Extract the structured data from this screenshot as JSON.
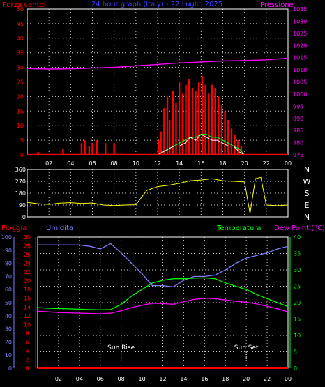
{
  "title": "24 hour graph (Italy) - 22 Luglio 2025",
  "x_ticks": [
    "02",
    "04",
    "06",
    "08",
    "10",
    "12",
    "14",
    "16",
    "18",
    "20",
    "22",
    "00"
  ],
  "colors": {
    "wind": "#ff0000",
    "gust": "#ff0000",
    "wind_mean": "#ffffff",
    "wind_green": "#00ff00",
    "pressure": "#ff00ff",
    "direction": "#ffff00",
    "humidity": "#7f7fff",
    "temperature": "#00ff00",
    "dewpoint": "#ff00ff",
    "rain": "#ff0000",
    "axis_left_top": "#ff0000",
    "axis_right_top": "#ff00ff",
    "axis_humidity": "#7f7fff",
    "axis_rain": "#ff0000",
    "axis_temp": "#00ff00",
    "grid": "#ffffff",
    "frame": "#ffffff"
  },
  "chart_data": [
    {
      "type": "line",
      "title": "24 hour graph (Italy) - 22 Luglio 2025",
      "ylabel_left": "Forza vento(",
      "ylabel_right": "Pressione",
      "y_left_ticks": [
        0,
        5,
        10,
        15,
        20,
        25,
        30,
        35,
        40,
        45,
        50
      ],
      "y_left_range": [
        0,
        50
      ],
      "y_right_ticks": [
        975,
        980,
        985,
        990,
        995,
        1000,
        1005,
        1010,
        1015,
        1020,
        1025,
        1030,
        1035
      ],
      "y_right_range": [
        975,
        1035
      ],
      "x_range_hours": [
        0,
        24
      ],
      "series": [
        {
          "name": "Pressione",
          "axis": "right",
          "x": [
            0,
            2,
            4,
            6,
            8,
            10,
            12,
            14,
            16,
            18,
            20,
            22,
            24
          ],
          "values": [
            1010.5,
            1010.3,
            1010.4,
            1010.7,
            1011.0,
            1011.6,
            1012.2,
            1012.8,
            1013.2,
            1013.6,
            1013.8,
            1014.1,
            1014.8
          ]
        },
        {
          "name": "Wind gust",
          "axis": "left",
          "kind": "bars",
          "x": [
            1.0,
            3.3,
            5.0,
            5.3,
            5.7,
            6.0,
            6.4,
            7.2,
            8.0,
            12.1,
            12.3,
            12.6,
            12.9,
            13.1,
            13.4,
            13.7,
            14.0,
            14.3,
            14.6,
            14.9,
            15.2,
            15.5,
            15.8,
            16.1,
            16.4,
            16.7,
            17.0,
            17.3,
            17.6,
            17.9,
            18.2,
            18.5,
            18.8,
            19.1,
            19.4,
            19.7
          ],
          "values": [
            1,
            2,
            4,
            5,
            3,
            4,
            5,
            4,
            4,
            5,
            8,
            16,
            20,
            12,
            22,
            18,
            25,
            21,
            24,
            26,
            23,
            22,
            25,
            27,
            24,
            21,
            24,
            23,
            20,
            17,
            15,
            12,
            9,
            7,
            5,
            3
          ]
        },
        {
          "name": "Wind mean",
          "axis": "left",
          "x": [
            12.0,
            12.5,
            13.0,
            13.5,
            14.0,
            14.5,
            15.0,
            15.5,
            16.0,
            16.5,
            17.0,
            17.5,
            18.0,
            18.5,
            19.0,
            19.5,
            20.0
          ],
          "values": [
            0,
            1,
            2,
            3,
            3,
            4,
            6,
            5,
            7,
            6,
            5,
            5,
            4,
            3,
            3,
            1,
            0
          ]
        },
        {
          "name": "Wind avg",
          "axis": "left",
          "x": [
            12.0,
            12.5,
            13.0,
            13.5,
            14.0,
            14.5,
            15.0,
            15.5,
            16.0,
            16.5,
            17.0,
            17.5,
            18.0,
            18.5,
            19.0,
            19.5,
            20.0
          ],
          "values": [
            0,
            1,
            2,
            3,
            4,
            5,
            6,
            6,
            7,
            7,
            6,
            6,
            5,
            4,
            3,
            2,
            0
          ]
        }
      ]
    },
    {
      "type": "line",
      "y_ticks": [
        0,
        90,
        180,
        270,
        360
      ],
      "y_range": [
        0,
        360
      ],
      "right_labels": [
        "N",
        "W",
        "S",
        "E",
        "N"
      ],
      "series": [
        {
          "name": "Wind direction",
          "x": [
            0,
            1,
            2,
            3,
            4,
            5,
            6,
            7,
            8,
            9,
            10,
            11,
            12,
            13,
            14,
            15,
            16,
            17,
            18,
            19,
            20,
            20.5,
            21,
            21.5,
            22,
            23,
            24
          ],
          "values": [
            110,
            100,
            95,
            105,
            108,
            102,
            106,
            90,
            86,
            90,
            92,
            200,
            230,
            240,
            255,
            275,
            280,
            290,
            275,
            270,
            265,
            25,
            290,
            300,
            90,
            85,
            90
          ]
        }
      ]
    },
    {
      "type": "line",
      "ylabel_rain": "Pioggia",
      "ylabel_humidity": "Umidita",
      "ylabel_temp": "Temperatura",
      "ylabel_dew": "Dew Point (°C)",
      "y_humidity_ticks": [
        0,
        10,
        20,
        30,
        40,
        50,
        60,
        70,
        80,
        90,
        100
      ],
      "y_humidity_range": [
        0,
        100
      ],
      "y_rain_ticks": [
        0,
        2,
        4,
        6,
        8,
        10,
        12,
        14,
        16,
        18,
        20,
        22,
        24,
        26,
        28,
        30
      ],
      "y_rain_range": [
        0,
        30
      ],
      "y_temp_ticks": [
        0,
        5,
        10,
        15,
        20,
        25,
        30,
        35,
        40
      ],
      "y_temp_range": [
        0,
        40
      ],
      "annotations": [
        {
          "text": "Sun Rise",
          "x": 8.0
        },
        {
          "text": "Sun Set",
          "x": 20.0
        }
      ],
      "series": [
        {
          "name": "Umidita",
          "axis": "humidity",
          "x": [
            0,
            1,
            2,
            3,
            4,
            5,
            6,
            7,
            8,
            9,
            10,
            11,
            12,
            13,
            14,
            15,
            16,
            17,
            18,
            19,
            20,
            21,
            22,
            23,
            24
          ],
          "values": [
            94,
            94,
            94,
            94,
            94,
            93,
            91,
            95,
            88,
            80,
            72,
            63,
            63,
            62,
            67,
            70,
            70,
            71,
            75,
            80,
            84,
            86,
            88,
            91,
            93
          ]
        },
        {
          "name": "Temperatura",
          "axis": "temp",
          "x": [
            0,
            1,
            2,
            3,
            4,
            5,
            6,
            7,
            8,
            9,
            10,
            11,
            12,
            13,
            14,
            15,
            16,
            17,
            18,
            19,
            20,
            21,
            22,
            23,
            24
          ],
          "values": [
            18.5,
            18.3,
            18.2,
            18.1,
            18.0,
            17.9,
            17.8,
            17.9,
            19.5,
            22.0,
            24.0,
            26.0,
            26.8,
            27.3,
            27.3,
            27.5,
            27.6,
            27.3,
            26.0,
            25.0,
            24.0,
            22.5,
            21.2,
            20.0,
            18.8
          ]
        },
        {
          "name": "Dew Point",
          "axis": "temp",
          "x": [
            0,
            1,
            2,
            3,
            4,
            5,
            6,
            7,
            8,
            9,
            10,
            11,
            12,
            13,
            14,
            15,
            16,
            17,
            18,
            19,
            20,
            21,
            22,
            23,
            24
          ],
          "values": [
            17.4,
            17.2,
            17.0,
            16.9,
            16.8,
            16.7,
            16.6,
            16.8,
            17.5,
            18.5,
            19.2,
            19.8,
            19.7,
            19.5,
            20.3,
            21.0,
            21.3,
            21.2,
            20.8,
            20.4,
            20.1,
            19.6,
            18.9,
            18.1,
            17.2
          ]
        },
        {
          "name": "Pioggia",
          "axis": "rain",
          "x": [
            0,
            24
          ],
          "values": [
            0,
            0
          ]
        }
      ]
    }
  ]
}
